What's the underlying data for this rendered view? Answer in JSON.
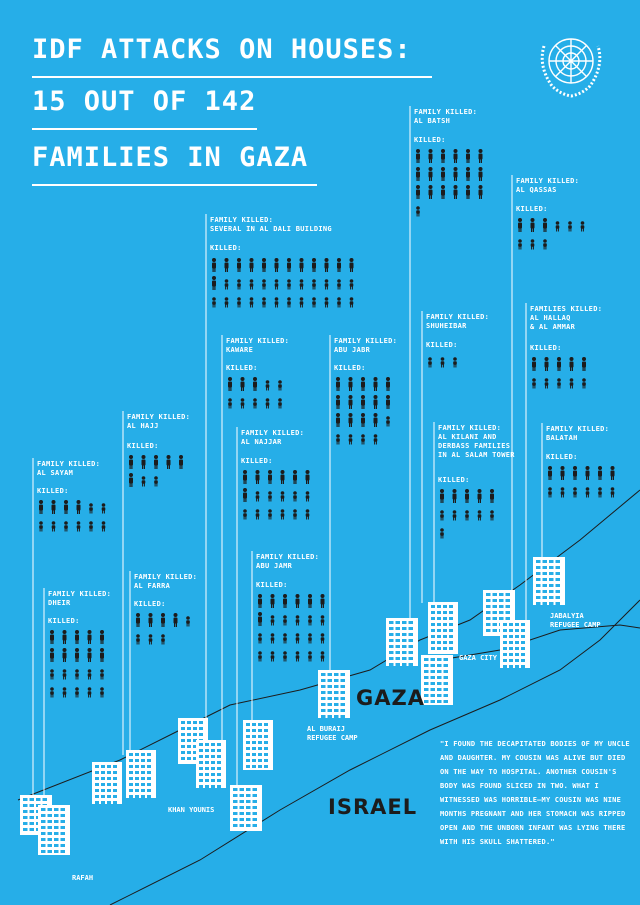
{
  "header": {
    "title_lines": [
      "IDF ATTACKS ON HOUSES:",
      "15 OUT OF 142",
      "FAMILIES IN GAZA"
    ],
    "logo": "un-emblem-icon"
  },
  "colors": {
    "background": "#26aee8",
    "white": "#ffffff",
    "dark": "#1c1c1c"
  },
  "icons": {
    "adult": "person-icon",
    "child": "child-icon",
    "building": "apartment-building-icon"
  },
  "families": [
    {
      "id": "al-sayam",
      "label": "FAMILY KILLED:\nAL SAYAM",
      "killed": "KILLED:",
      "rows": [
        [
          "m",
          "m",
          "m",
          "m",
          "c",
          "c"
        ],
        [
          "c",
          "c",
          "c",
          "c",
          "c",
          "c"
        ]
      ]
    },
    {
      "id": "dheir",
      "label": "FAMILY KILLED:\nDHEIR",
      "killed": "KILLED:",
      "rows": [
        [
          "m",
          "m",
          "m",
          "m",
          "m"
        ],
        [
          "m",
          "m",
          "m",
          "m",
          "m"
        ],
        [
          "c",
          "c",
          "c",
          "c",
          "c"
        ],
        [
          "c",
          "c",
          "c",
          "c",
          "c"
        ]
      ]
    },
    {
      "id": "al-hajj",
      "label": "FAMILY KILLED:\nAL HAJJ",
      "killed": "KILLED:",
      "rows": [
        [
          "m",
          "m",
          "m",
          "m",
          "m"
        ],
        [
          "m",
          "c",
          "c"
        ]
      ]
    },
    {
      "id": "al-farra",
      "label": "FAMILY KILLED:\nAL FARRA",
      "killed": "KILLED:",
      "rows": [
        [
          "m",
          "m",
          "m",
          "m",
          "c"
        ],
        [
          "c",
          "c",
          "c"
        ]
      ]
    },
    {
      "id": "al-dali",
      "label": "FAMILY KILLED:\nSEVERAL IN AL DALI BUILDING",
      "killed": "KILLED:",
      "rows": [
        [
          "m",
          "m",
          "m",
          "m",
          "m",
          "m",
          "m",
          "m",
          "m",
          "m",
          "m",
          "m"
        ],
        [
          "m",
          "c",
          "c",
          "c",
          "c",
          "c",
          "c",
          "c",
          "c",
          "c",
          "c",
          "c"
        ],
        [
          "c",
          "c",
          "c",
          "c",
          "c",
          "c",
          "c",
          "c",
          "c",
          "c",
          "c",
          "c"
        ]
      ]
    },
    {
      "id": "kaware",
      "label": "FAMILY KILLED:\nKAWARE",
      "killed": "KILLED:",
      "rows": [
        [
          "m",
          "m",
          "m",
          "c",
          "c"
        ],
        [
          "c",
          "c",
          "c",
          "c",
          "c"
        ]
      ]
    },
    {
      "id": "al-najjar",
      "label": "FAMILY KILLED:\nAL NAJJAR",
      "killed": "KILLED:",
      "rows": [
        [
          "m",
          "m",
          "m",
          "m",
          "m",
          "m"
        ],
        [
          "m",
          "c",
          "c",
          "c",
          "c",
          "c"
        ],
        [
          "c",
          "c",
          "c",
          "c",
          "c",
          "c"
        ]
      ]
    },
    {
      "id": "abu-jamr",
      "label": "FAMILY KILLED:\nABU JAMR",
      "killed": "KILLED:",
      "rows": [
        [
          "m",
          "m",
          "m",
          "m",
          "m",
          "m"
        ],
        [
          "m",
          "c",
          "c",
          "c",
          "c",
          "c"
        ],
        [
          "c",
          "c",
          "c",
          "c",
          "c",
          "c"
        ],
        [
          "c",
          "c",
          "c",
          "c",
          "c",
          "c"
        ]
      ]
    },
    {
      "id": "abu-jabr",
      "label": "FAMILY KILLED:\nABU JABR",
      "killed": "KILLED:",
      "rows": [
        [
          "m",
          "m",
          "m",
          "m",
          "m"
        ],
        [
          "m",
          "m",
          "m",
          "m",
          "m"
        ],
        [
          "m",
          "m",
          "m",
          "m",
          "c"
        ],
        [
          "c",
          "c",
          "c",
          "c"
        ]
      ]
    },
    {
      "id": "al-batsh",
      "label": "FAMILY KILLED:\nAL BATSH",
      "killed": "KILLED:",
      "rows": [
        [
          "m",
          "m",
          "m",
          "m",
          "m",
          "m"
        ],
        [
          "m",
          "m",
          "m",
          "m",
          "m",
          "m"
        ],
        [
          "m",
          "m",
          "m",
          "m",
          "m",
          "m"
        ],
        [
          "c"
        ]
      ]
    },
    {
      "id": "shuheibar",
      "label": "FAMILY KILLED:\nSHUHEIBAR",
      "killed": "KILLED:",
      "rows": [
        [
          "c",
          "c",
          "c"
        ]
      ]
    },
    {
      "id": "al-kilani",
      "label": "FAMILY KILLED:\nAL KILANI AND\nDERBASS FAMILIES\nIN AL SALAM TOWER",
      "killed": "KILLED:",
      "rows": [
        [
          "m",
          "m",
          "m",
          "m",
          "m"
        ],
        [
          "c",
          "c",
          "c",
          "c",
          "c"
        ],
        [
          "c"
        ]
      ]
    },
    {
      "id": "al-qassas",
      "label": "FAMILY KILLED:\nAL QASSAS",
      "killed": "KILLED:",
      "rows": [
        [
          "m",
          "m",
          "m",
          "c",
          "c",
          "c"
        ],
        [
          "c",
          "c",
          "c"
        ]
      ]
    },
    {
      "id": "al-hallaq",
      "label": "FAMILIES KILLED:\nAL HALLAQ\n& AL AMMAR",
      "killed": "KILLED:",
      "rows": [
        [
          "m",
          "m",
          "m",
          "m",
          "m"
        ],
        [
          "c",
          "c",
          "c",
          "c",
          "c"
        ]
      ]
    },
    {
      "id": "balatah",
      "label": "FAMILY KILLED:\nBALATAH",
      "killed": "KILLED:",
      "rows": [
        [
          "m",
          "m",
          "m",
          "m",
          "m",
          "m"
        ],
        [
          "c",
          "c",
          "c",
          "c",
          "c",
          "c"
        ]
      ]
    }
  ],
  "map": {
    "cities": [
      {
        "id": "rafah",
        "text": "RAFAH"
      },
      {
        "id": "khan-younis",
        "text": "KHAN YOUNIS"
      },
      {
        "id": "al-buraij",
        "text": "AL BURAIJ\nREFUGEE CAMP"
      },
      {
        "id": "gaza-city",
        "text": "GAZA CITY"
      },
      {
        "id": "jabalyia",
        "text": "JABALYIA\nREFUGEE CAMP"
      }
    ],
    "regions": [
      {
        "id": "gaza",
        "text": "GAZA"
      },
      {
        "id": "israel",
        "text": "ISRAEL"
      }
    ]
  },
  "quote": "\"I FOUND THE DECAPITATED BODIES OF MY UNCLE AND DAUGHTER. MY COUSIN WAS ALIVE BUT DIED ON THE WAY TO HOSPITAL. ANOTHER COUSIN'S BODY WAS FOUND SLICED IN TWO. WHAT I WITNESSED WAS HORRIBLE—MY COUSIN WAS NINE MONTHS PREGNANT AND HER STOMACH WAS RIPPED OPEN AND THE UNBORN INFANT WAS LYING THERE WITH HIS SKULL SHATTERED.\""
}
